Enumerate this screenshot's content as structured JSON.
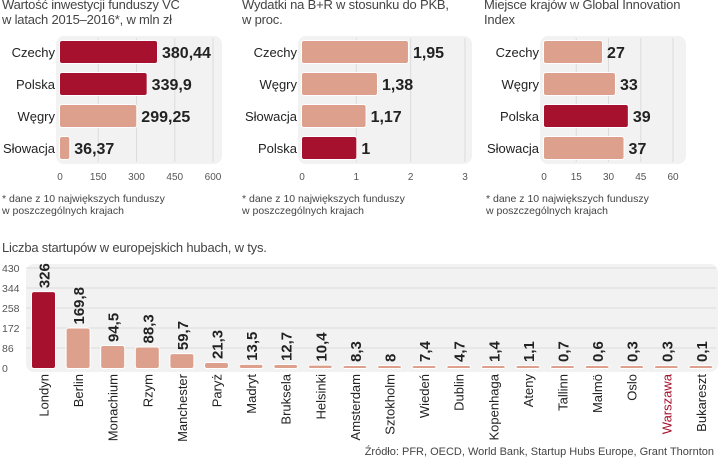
{
  "colors": {
    "highlight": "#a6122e",
    "normal": "#dca08c",
    "panel": "#f2f2f2",
    "grid": "#dcdcdc",
    "highlight_label": "#a6122e"
  },
  "chart_data": [
    {
      "type": "bar",
      "orientation": "horizontal",
      "title": "Wartość inwestycji funduszy VC w latach 2015–2016*, w mln zł",
      "title_lines": [
        "Wartość inwestycji funduszy VC",
        "w latach 2015–2016*, w mln zł"
      ],
      "categories": [
        "Czechy",
        "Polska",
        "Węgry",
        "Słowacja"
      ],
      "values": [
        380.44,
        339.9,
        299.25,
        36.37
      ],
      "value_labels": [
        "380,44",
        "339,9",
        "299,25",
        "36,37"
      ],
      "highlight": [
        true,
        true,
        false,
        false
      ],
      "xlim": [
        0,
        600
      ],
      "xticks": [
        0,
        150,
        300,
        450,
        600
      ],
      "xtick_labels": [
        "0",
        "150",
        "300",
        "450",
        "600"
      ],
      "grid": true,
      "note_lines": [
        "* dane z 10 największych funduszy",
        "w poszczególnych krajach"
      ]
    },
    {
      "type": "bar",
      "orientation": "horizontal",
      "title": "Wydatki na B+R w stosunku do PKB, w proc.",
      "title_lines": [
        "Wydatki na B+R w stosunku do PKB,",
        "w proc."
      ],
      "categories": [
        "Czechy",
        "Węgry",
        "Słowacja",
        "Polska"
      ],
      "values": [
        1.95,
        1.38,
        1.17,
        1
      ],
      "value_labels": [
        "1,95",
        "1,38",
        "1,17",
        "1"
      ],
      "highlight": [
        false,
        false,
        false,
        true
      ],
      "xlim": [
        0,
        3
      ],
      "xticks": [
        0,
        1,
        2,
        3
      ],
      "xtick_labels": [
        "0",
        "1",
        "2",
        "3"
      ],
      "grid": true,
      "note_lines": [
        "* dane z 10 największych funduszy",
        "w poszczególnych krajach"
      ]
    },
    {
      "type": "bar",
      "orientation": "horizontal",
      "title": "Miejsce krajów w Global Innovation Index",
      "title_lines": [
        "Miejsce krajów w Global Innovation",
        "Index"
      ],
      "categories": [
        "Czechy",
        "Węgry",
        "Polska",
        "Słowacja"
      ],
      "values": [
        27,
        33,
        39,
        37
      ],
      "value_labels": [
        "27",
        "33",
        "39",
        "37"
      ],
      "highlight": [
        false,
        false,
        true,
        false
      ],
      "xlim": [
        0,
        60
      ],
      "xticks": [
        0,
        15,
        30,
        45,
        60
      ],
      "xtick_labels": [
        "0",
        "15",
        "30",
        "45",
        "60"
      ],
      "grid": true,
      "note_lines": [
        "* dane z 10 największych funduszy",
        "w poszczególnych krajach"
      ]
    },
    {
      "type": "bar",
      "orientation": "vertical",
      "title": "Liczba startupów w europejskich hubach, w tys.",
      "categories": [
        "Londyn",
        "Berlin",
        "Monachium",
        "Rzym",
        "Manchester",
        "Paryż",
        "Madryt",
        "Bruksela",
        "Helsinki",
        "Amsterdam",
        "Sztokholm",
        "Wiedeń",
        "Dublin",
        "Kopenhaga",
        "Ateny",
        "Tallinn",
        "Malmö",
        "Oslo",
        "Warszawa",
        "Bukareszt"
      ],
      "values": [
        326,
        169.8,
        94.5,
        88.3,
        59.7,
        21.3,
        13.5,
        12.7,
        10.4,
        8.3,
        8,
        7.4,
        4.7,
        1.4,
        1.1,
        0.7,
        0.6,
        0.3,
        0.3,
        0.1
      ],
      "value_labels": [
        "326",
        "169,8",
        "94,5",
        "88,3",
        "59,7",
        "21,3",
        "13,5",
        "12,7",
        "10,4",
        "8,3",
        "8",
        "7,4",
        "4,7",
        "1,4",
        "1,1",
        "0,7",
        "0,6",
        "0,3",
        "0,3",
        "0,1"
      ],
      "highlight": [
        true,
        false,
        false,
        false,
        false,
        false,
        false,
        false,
        false,
        false,
        false,
        false,
        false,
        false,
        false,
        false,
        false,
        false,
        false,
        false
      ],
      "highlight_label": [
        false,
        false,
        false,
        false,
        false,
        false,
        false,
        false,
        false,
        false,
        false,
        false,
        false,
        false,
        false,
        false,
        false,
        false,
        true,
        false
      ],
      "ylim": [
        0,
        430
      ],
      "yticks": [
        0,
        86,
        172,
        258,
        344,
        430
      ],
      "ytick_labels": [
        "0",
        "86",
        "172",
        "258",
        "344",
        "430"
      ],
      "grid": true
    }
  ],
  "source": "Źródło: PFR, OECD, World Bank, Startup Hubs Europe, Grant Thornton"
}
